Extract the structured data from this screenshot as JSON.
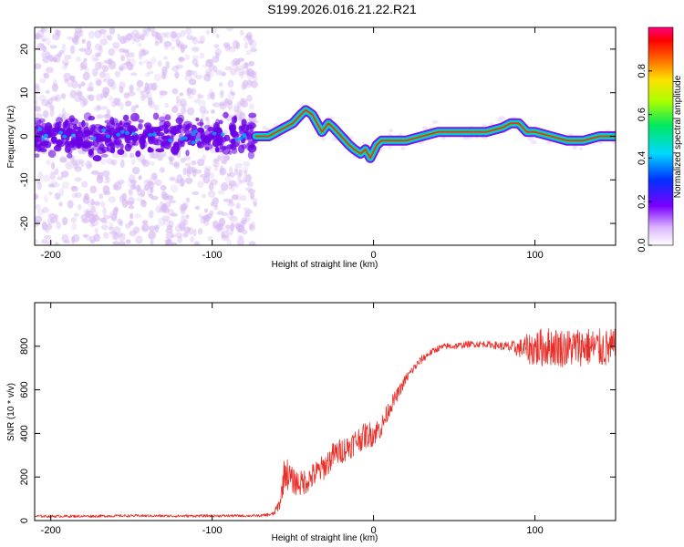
{
  "title": "S199.2026.016.21.22.R21",
  "colors": {
    "snr_line": "#e8302a",
    "ridge_core": "#e8302a",
    "ridge_mid": "#00e070",
    "ridge_edge": "#00c8e8",
    "noise_dark": "#6a00e6",
    "noise_light": "#d6b8f2"
  },
  "chart_data": [
    {
      "type": "heatmap",
      "name": "spectrogram",
      "xlabel": "Height of straight line (km)",
      "ylabel": "Frequency (Hz)",
      "xlim": [
        -210,
        150
      ],
      "ylim": [
        -25,
        25
      ],
      "xticks": [
        -200,
        -100,
        0,
        100
      ],
      "xtick_labels": [
        "-200",
        "-100",
        "0",
        "100"
      ],
      "yticks": [
        20,
        10,
        0,
        -10,
        -20
      ],
      "ytick_labels": [
        "20",
        "10",
        "0",
        "-10",
        "-20"
      ],
      "noise_region_x": [
        -210,
        -73
      ],
      "ridge": {
        "x": [
          -73,
          -65,
          -60,
          -55,
          -50,
          -45,
          -42,
          -38,
          -35,
          -32,
          -28,
          -25,
          -20,
          -15,
          -12,
          -8,
          -5,
          -2,
          2,
          5,
          10,
          20,
          30,
          40,
          50,
          60,
          70,
          80,
          85,
          90,
          95,
          100,
          110,
          120,
          130,
          140,
          150
        ],
        "freq": [
          0,
          0,
          1,
          2,
          3,
          5,
          6,
          5,
          3,
          1,
          3,
          2,
          0,
          -2,
          -3,
          -4,
          -3,
          -5,
          -2,
          -1,
          -1,
          -1,
          0,
          1,
          1,
          1,
          1,
          2,
          3,
          3,
          1,
          1,
          0,
          -1,
          -1,
          0,
          0
        ]
      },
      "colorbar": {
        "label": "Normalized spectral amplitude",
        "range": [
          0,
          1
        ],
        "ticks": [
          0.0,
          0.2,
          0.4,
          0.6,
          0.8
        ],
        "tick_labels": [
          "0.0",
          "0.2",
          "0.4",
          "0.6",
          "0.8"
        ]
      }
    },
    {
      "type": "line",
      "name": "snr",
      "xlabel": "Height of straight line (km)",
      "ylabel": "SNR (10 * v/v)",
      "xlim": [
        -210,
        150
      ],
      "ylim": [
        0,
        1000
      ],
      "xticks": [
        -200,
        -100,
        0,
        100
      ],
      "xtick_labels": [
        "-200",
        "-100",
        "0",
        "100"
      ],
      "yticks": [
        0,
        200,
        400,
        600,
        800
      ],
      "ytick_labels": [
        "0",
        "200",
        "400",
        "600",
        "800"
      ],
      "x": [
        -210,
        -180,
        -150,
        -120,
        -90,
        -70,
        -62,
        -58,
        -55,
        -50,
        -45,
        -40,
        -35,
        -30,
        -25,
        -20,
        -15,
        -10,
        -5,
        0,
        5,
        10,
        15,
        20,
        25,
        30,
        35,
        40,
        45,
        50,
        60,
        70,
        80,
        90,
        100,
        110,
        120,
        130,
        140,
        150
      ],
      "y": [
        20,
        20,
        22,
        21,
        22,
        22,
        30,
        80,
        230,
        180,
        170,
        190,
        220,
        250,
        300,
        320,
        340,
        370,
        390,
        400,
        430,
        520,
        580,
        650,
        700,
        740,
        770,
        790,
        800,
        800,
        810,
        810,
        800,
        790,
        790,
        800,
        790,
        800,
        790,
        790
      ],
      "noise_amplitude": [
        6,
        6,
        6,
        6,
        6,
        6,
        10,
        30,
        80,
        60,
        60,
        60,
        60,
        60,
        60,
        60,
        60,
        60,
        60,
        60,
        50,
        40,
        30,
        25,
        20,
        20,
        15,
        15,
        15,
        15,
        15,
        15,
        20,
        40,
        90,
        90,
        90,
        90,
        90,
        90
      ]
    }
  ]
}
